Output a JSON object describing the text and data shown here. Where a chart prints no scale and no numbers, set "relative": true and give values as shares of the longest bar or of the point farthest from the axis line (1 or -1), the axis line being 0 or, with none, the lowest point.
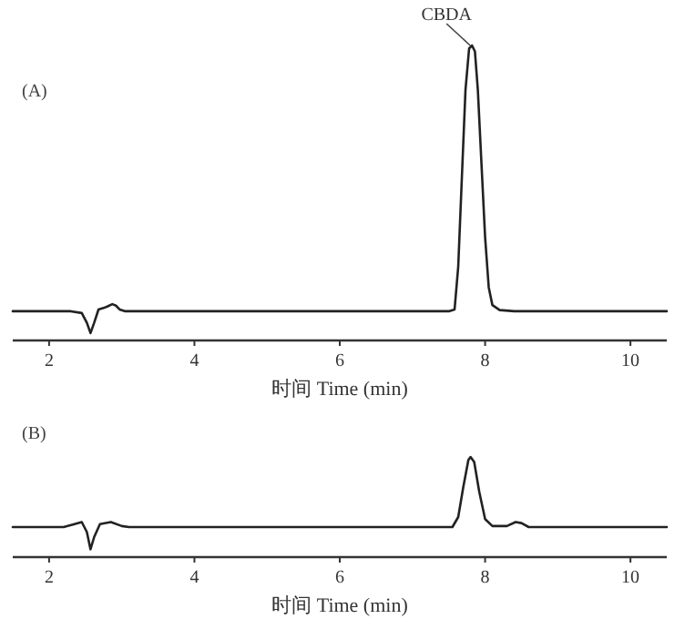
{
  "chart_data": [
    {
      "type": "line",
      "title": "(A)",
      "xlabel": "时间 Time (min)",
      "relative": true,
      "tick_labels": "x",
      "xlim": [
        1.5,
        10.5
      ],
      "xticks": [
        2,
        4,
        6,
        8,
        10
      ],
      "annotations": [
        {
          "text": "CBDA",
          "x": 7.82,
          "y": 1
        }
      ],
      "x": [
        1.5,
        2.3,
        2.45,
        2.52,
        2.57,
        2.62,
        2.68,
        2.75,
        2.8,
        2.87,
        2.92,
        2.97,
        3.05,
        7.5,
        7.58,
        7.63,
        7.68,
        7.73,
        7.78,
        7.82,
        7.86,
        7.9,
        7.95,
        8.0,
        8.05,
        8.1,
        8.2,
        8.4,
        10.5
      ],
      "series": [
        {
          "color": "#222222",
          "values": [
            0.099,
            0.099,
            0.093,
            0.06,
            0.025,
            0.06,
            0.105,
            0.11,
            0.115,
            0.123,
            0.118,
            0.105,
            0.099,
            0.099,
            0.105,
            0.25,
            0.55,
            0.85,
            0.99,
            1.0,
            0.98,
            0.85,
            0.6,
            0.35,
            0.18,
            0.12,
            0.103,
            0.099,
            0.099
          ]
        }
      ]
    },
    {
      "type": "line",
      "title": "(B)",
      "xlabel": "时间 Time (min)",
      "relative": true,
      "tick_labels": "x",
      "xlim": [
        1.5,
        10.5
      ],
      "xticks": [
        2,
        4,
        6,
        8,
        10
      ],
      "x": [
        1.5,
        2.2,
        2.35,
        2.45,
        2.52,
        2.57,
        2.62,
        2.7,
        2.85,
        3.0,
        3.1,
        7.55,
        7.63,
        7.7,
        7.77,
        7.8,
        7.85,
        7.92,
        8.0,
        8.1,
        8.3,
        8.42,
        8.5,
        8.6,
        10.5
      ],
      "series": [
        {
          "color": "#222222",
          "values": [
            0.3,
            0.3,
            0.33,
            0.35,
            0.25,
            0.078,
            0.2,
            0.33,
            0.35,
            0.31,
            0.3,
            0.3,
            0.4,
            0.7,
            0.97,
            1.0,
            0.95,
            0.65,
            0.38,
            0.31,
            0.31,
            0.35,
            0.34,
            0.3,
            0.3
          ]
        }
      ]
    }
  ]
}
